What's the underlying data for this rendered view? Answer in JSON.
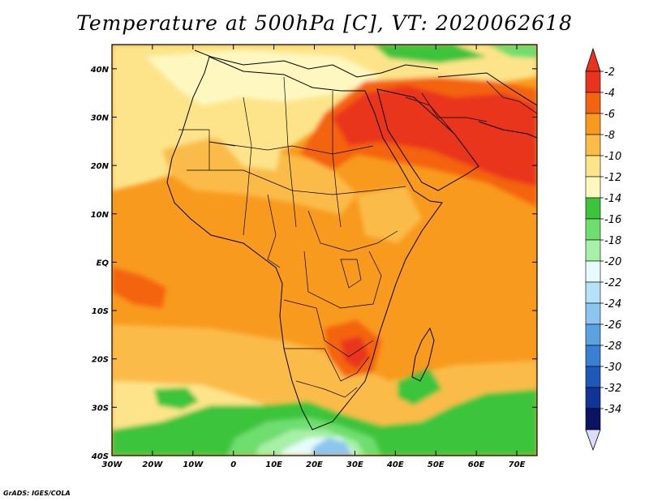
{
  "title": "Temperature at 500hPa [C], VT: 2020062618",
  "credit": "GrADS: IGES/COLA",
  "map": {
    "lon_ticks": [
      "30W",
      "20W",
      "10W",
      "0",
      "10E",
      "20E",
      "30E",
      "40E",
      "50E",
      "60E",
      "70E"
    ],
    "lat_ticks": [
      "40N",
      "30N",
      "20N",
      "10N",
      "EQ",
      "10S",
      "20S",
      "30S",
      "40S"
    ],
    "lon_range": [
      -30,
      75
    ],
    "lat_range": [
      -40,
      45
    ],
    "variable": "Temperature at 500hPa",
    "units": "C",
    "valid_time": "2020062618"
  },
  "colorbar": {
    "levels": [
      "-2",
      "-4",
      "-6",
      "-8",
      "-10",
      "-12",
      "-14",
      "-16",
      "-18",
      "-20",
      "-22",
      "-24",
      "-26",
      "-28",
      "-30",
      "-32",
      "-34"
    ],
    "colors": [
      "#e8341c",
      "#f4630f",
      "#f89a1e",
      "#fbbb48",
      "#fde48a",
      "#fef8c0",
      "#3dc43d",
      "#6ede6e",
      "#a7f0a7",
      "#e6fbfd",
      "#b5e2f6",
      "#8cc6ef",
      "#5aa2e2",
      "#3a7fd4",
      "#2058b8",
      "#103596",
      "#0a1462"
    ],
    "over_color": "#e8341c",
    "under_color": "#dcdcff"
  }
}
